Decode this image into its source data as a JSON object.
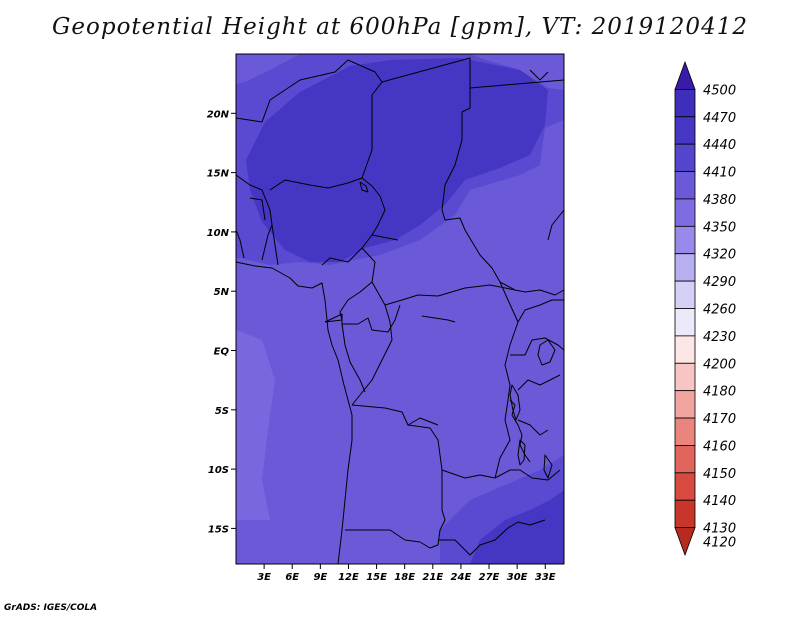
{
  "title": "Geopotential Height at 600hPa [gpm], VT: 2019120412",
  "footer": "GrADS: IGES/COLA",
  "map": {
    "lon_range": [
      0,
      35
    ],
    "lat_range": [
      -18,
      25
    ],
    "lat_ticks": [
      {
        "value": 20,
        "label": "20N"
      },
      {
        "value": 15,
        "label": "15N"
      },
      {
        "value": 10,
        "label": "10N"
      },
      {
        "value": 5,
        "label": "5N"
      },
      {
        "value": 0,
        "label": "EQ"
      },
      {
        "value": -5,
        "label": "5S"
      },
      {
        "value": -10,
        "label": "10S"
      },
      {
        "value": -15,
        "label": "15S"
      }
    ],
    "lon_ticks": [
      {
        "value": 3,
        "label": "3E"
      },
      {
        "value": 6,
        "label": "6E"
      },
      {
        "value": 9,
        "label": "9E"
      },
      {
        "value": 12,
        "label": "12E"
      },
      {
        "value": 15,
        "label": "15E"
      },
      {
        "value": 18,
        "label": "18E"
      },
      {
        "value": 21,
        "label": "21E"
      },
      {
        "value": 24,
        "label": "24E"
      },
      {
        "value": 27,
        "label": "27E"
      },
      {
        "value": 30,
        "label": "30E"
      },
      {
        "value": 33,
        "label": "33E"
      }
    ]
  },
  "colorbar": {
    "levels": [
      "4500",
      "4470",
      "4440",
      "4410",
      "4380",
      "4350",
      "4320",
      "4290",
      "4260",
      "4230",
      "4200",
      "4180",
      "4170",
      "4160",
      "4150",
      "4140",
      "4130",
      "4120"
    ],
    "colors": [
      "#3a1aa8",
      "#3f2dbb",
      "#4636c4",
      "#5346cc",
      "#6a5ad8",
      "#7d6de0",
      "#978aea",
      "#b7b0f0",
      "#d4d0f6",
      "#ece9fb",
      "#fde6e6",
      "#f7c6c4",
      "#f2a4a0",
      "#ea857e",
      "#e1655d",
      "#d64a40",
      "#c8362b",
      "#b62a20"
    ]
  },
  "field_colors": {
    "c4440": "#4636c4",
    "c4410": "#5a4ad1",
    "c4380": "#6a5ad8",
    "c4350": "#7868df"
  }
}
